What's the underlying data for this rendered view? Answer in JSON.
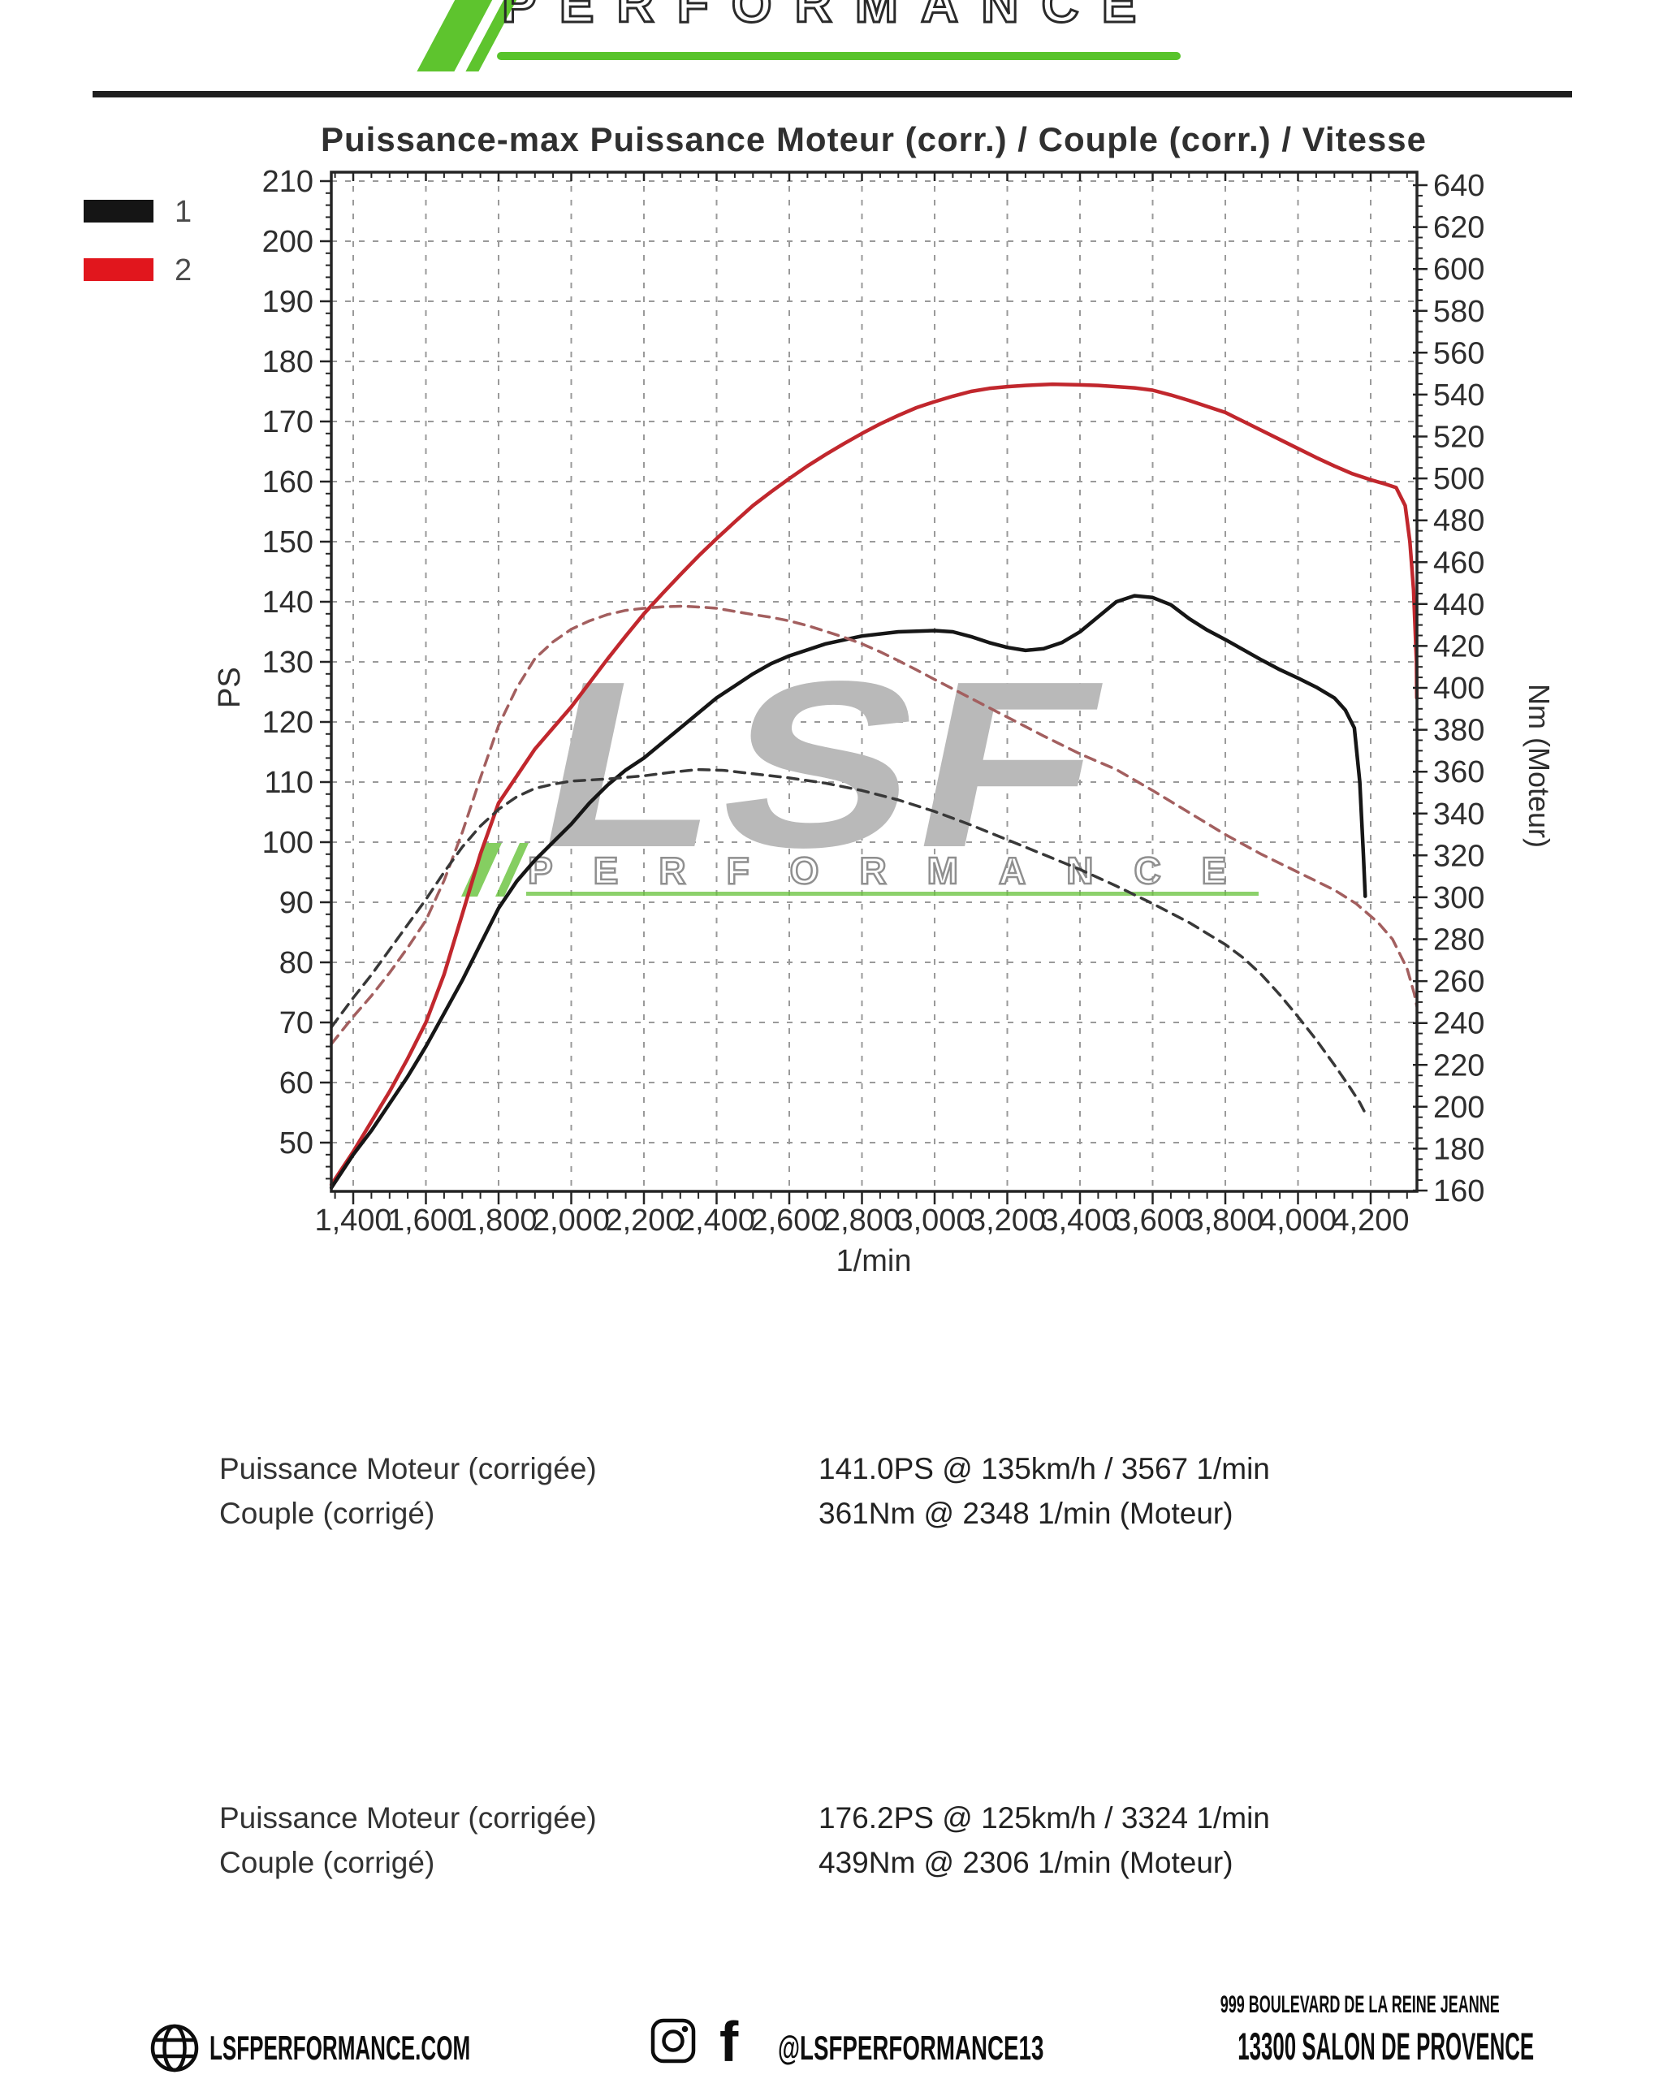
{
  "header": {
    "wordmark": "PERFORMANCE",
    "accent_color": "#5ec42e"
  },
  "legend": [
    {
      "label": "1",
      "color": "#151515"
    },
    {
      "label": "2",
      "color": "#e1161d"
    }
  ],
  "watermark": {
    "text": "LSF",
    "subtext": "PERFORMANCE",
    "color": "#b9b9b9",
    "accent_color": "#66c23a"
  },
  "chart_data": {
    "type": "line",
    "title": "Puissance-max Puissance Moteur (corr.) / Couple (corr.) / Vitesse",
    "xlabel": "1/min",
    "ylabel_left": "PS",
    "ylabel_right": "Nm (Moteur)",
    "x_ticks": [
      1400,
      1600,
      1800,
      2000,
      2200,
      2400,
      2600,
      2800,
      3000,
      3200,
      3400,
      3600,
      3800,
      4000,
      4200
    ],
    "x_range": [
      1340,
      4327
    ],
    "y_left_ticks": [
      50,
      60,
      70,
      80,
      90,
      100,
      110,
      120,
      130,
      140,
      150,
      160,
      170,
      180,
      190,
      200,
      210
    ],
    "y_left_range": [
      41.5,
      211.5
    ],
    "y_right_ticks": [
      160,
      180,
      200,
      220,
      240,
      260,
      280,
      300,
      320,
      340,
      360,
      380,
      400,
      420,
      440,
      460,
      480,
      500,
      520,
      540,
      560,
      580,
      600,
      620,
      640
    ],
    "y_right_range": [
      145,
      655
    ],
    "grid": true,
    "legend_position": "top-left",
    "series": [
      {
        "name": "Run 2 Puissance Moteur (corr.) [PS]",
        "axis": "left",
        "style": "solid",
        "color": "#c1272d",
        "max_label": "176.2PS @ 3324 1/min",
        "points": [
          [
            1340,
            43
          ],
          [
            1400,
            48.5
          ],
          [
            1450,
            53.5
          ],
          [
            1500,
            58.5
          ],
          [
            1550,
            64
          ],
          [
            1600,
            70
          ],
          [
            1650,
            78
          ],
          [
            1700,
            88
          ],
          [
            1750,
            98
          ],
          [
            1800,
            106.5
          ],
          [
            1850,
            111
          ],
          [
            1900,
            115.5
          ],
          [
            1950,
            119
          ],
          [
            2000,
            122.5
          ],
          [
            2050,
            126.5
          ],
          [
            2100,
            130.5
          ],
          [
            2150,
            134.3
          ],
          [
            2200,
            138
          ],
          [
            2250,
            141.3
          ],
          [
            2300,
            144.5
          ],
          [
            2350,
            147.6
          ],
          [
            2400,
            150.5
          ],
          [
            2450,
            153.3
          ],
          [
            2500,
            156
          ],
          [
            2550,
            158.3
          ],
          [
            2600,
            160.5
          ],
          [
            2650,
            162.6
          ],
          [
            2700,
            164.5
          ],
          [
            2750,
            166.3
          ],
          [
            2800,
            168
          ],
          [
            2850,
            169.6
          ],
          [
            2900,
            171
          ],
          [
            2950,
            172.3
          ],
          [
            3000,
            173.3
          ],
          [
            3050,
            174.2
          ],
          [
            3100,
            175
          ],
          [
            3150,
            175.5
          ],
          [
            3200,
            175.8
          ],
          [
            3250,
            176
          ],
          [
            3324,
            176.2
          ],
          [
            3400,
            176.1
          ],
          [
            3450,
            176
          ],
          [
            3500,
            175.8
          ],
          [
            3550,
            175.6
          ],
          [
            3600,
            175.2
          ],
          [
            3650,
            174.4
          ],
          [
            3700,
            173.5
          ],
          [
            3750,
            172.5
          ],
          [
            3800,
            171.5
          ],
          [
            3850,
            170
          ],
          [
            3900,
            168.5
          ],
          [
            3950,
            167
          ],
          [
            4000,
            165.5
          ],
          [
            4050,
            164
          ],
          [
            4100,
            162.6
          ],
          [
            4150,
            161.3
          ],
          [
            4200,
            160.3
          ],
          [
            4240,
            159.6
          ],
          [
            4270,
            159
          ],
          [
            4295,
            156
          ],
          [
            4308,
            150
          ],
          [
            4318,
            142
          ],
          [
            4326,
            130
          ],
          [
            4327,
            124
          ]
        ]
      },
      {
        "name": "Run 1 Puissance Moteur (corr.) [PS]",
        "axis": "left",
        "style": "solid",
        "color": "#161616",
        "max_label": "141.0PS @ 3567 1/min",
        "points": [
          [
            1340,
            42.5
          ],
          [
            1400,
            48
          ],
          [
            1450,
            52
          ],
          [
            1500,
            56.5
          ],
          [
            1550,
            61
          ],
          [
            1600,
            66
          ],
          [
            1650,
            71.5
          ],
          [
            1700,
            77
          ],
          [
            1750,
            83
          ],
          [
            1800,
            89
          ],
          [
            1850,
            93.5
          ],
          [
            1900,
            97
          ],
          [
            1950,
            100
          ],
          [
            2000,
            103
          ],
          [
            2050,
            106.5
          ],
          [
            2100,
            109.5
          ],
          [
            2150,
            112
          ],
          [
            2200,
            114
          ],
          [
            2250,
            116.5
          ],
          [
            2300,
            119
          ],
          [
            2350,
            121.5
          ],
          [
            2400,
            124
          ],
          [
            2450,
            126
          ],
          [
            2500,
            128
          ],
          [
            2550,
            129.7
          ],
          [
            2600,
            131
          ],
          [
            2700,
            133
          ],
          [
            2800,
            134.3
          ],
          [
            2900,
            135
          ],
          [
            3000,
            135.2
          ],
          [
            3050,
            135
          ],
          [
            3100,
            134.2
          ],
          [
            3150,
            133.2
          ],
          [
            3200,
            132.4
          ],
          [
            3250,
            131.9
          ],
          [
            3300,
            132.2
          ],
          [
            3350,
            133.2
          ],
          [
            3400,
            135
          ],
          [
            3450,
            137.5
          ],
          [
            3500,
            140
          ],
          [
            3550,
            141
          ],
          [
            3600,
            140.7
          ],
          [
            3650,
            139.5
          ],
          [
            3700,
            137.2
          ],
          [
            3750,
            135.3
          ],
          [
            3800,
            133.7
          ],
          [
            3850,
            132
          ],
          [
            3900,
            130.3
          ],
          [
            3950,
            128.7
          ],
          [
            4000,
            127.3
          ],
          [
            4050,
            125.8
          ],
          [
            4100,
            124
          ],
          [
            4130,
            122
          ],
          [
            4155,
            119
          ],
          [
            4170,
            110
          ],
          [
            4180,
            98
          ],
          [
            4185,
            91
          ]
        ]
      },
      {
        "name": "Run 2 Couple (corr.) [Nm]",
        "axis": "right",
        "style": "dashed",
        "color": "#a35f5f",
        "max_label": "439Nm @ 2306 1/min",
        "points": [
          [
            1340,
            230
          ],
          [
            1400,
            243
          ],
          [
            1450,
            253
          ],
          [
            1500,
            264
          ],
          [
            1550,
            276
          ],
          [
            1600,
            289
          ],
          [
            1650,
            308
          ],
          [
            1700,
            331
          ],
          [
            1750,
            357
          ],
          [
            1800,
            382
          ],
          [
            1850,
            400
          ],
          [
            1900,
            414
          ],
          [
            1950,
            422
          ],
          [
            2000,
            428
          ],
          [
            2050,
            432
          ],
          [
            2100,
            435
          ],
          [
            2150,
            437
          ],
          [
            2200,
            438
          ],
          [
            2250,
            438.7
          ],
          [
            2306,
            439
          ],
          [
            2360,
            438.5
          ],
          [
            2400,
            438
          ],
          [
            2450,
            436.5
          ],
          [
            2500,
            435
          ],
          [
            2550,
            433.7
          ],
          [
            2600,
            432
          ],
          [
            2650,
            429.7
          ],
          [
            2700,
            427
          ],
          [
            2750,
            424.2
          ],
          [
            2800,
            421
          ],
          [
            2850,
            417.2
          ],
          [
            2900,
            413
          ],
          [
            2950,
            408.6
          ],
          [
            3000,
            404
          ],
          [
            3100,
            395
          ],
          [
            3200,
            386
          ],
          [
            3300,
            377
          ],
          [
            3400,
            368.5
          ],
          [
            3500,
            361
          ],
          [
            3600,
            351
          ],
          [
            3700,
            340.5
          ],
          [
            3800,
            330
          ],
          [
            3900,
            320.5
          ],
          [
            4000,
            312
          ],
          [
            4100,
            303.5
          ],
          [
            4160,
            297
          ],
          [
            4220,
            288
          ],
          [
            4260,
            280
          ],
          [
            4300,
            266
          ],
          [
            4320,
            254
          ],
          [
            4327,
            248
          ]
        ]
      },
      {
        "name": "Run 1 Couple (corr.) [Nm]",
        "axis": "right",
        "style": "dashed",
        "color": "#383838",
        "max_label": "361Nm @ 2348 1/min",
        "points": [
          [
            1340,
            238
          ],
          [
            1400,
            252
          ],
          [
            1450,
            263
          ],
          [
            1500,
            275
          ],
          [
            1550,
            287
          ],
          [
            1600,
            299
          ],
          [
            1650,
            312
          ],
          [
            1700,
            324
          ],
          [
            1750,
            334
          ],
          [
            1800,
            342
          ],
          [
            1850,
            348
          ],
          [
            1900,
            352
          ],
          [
            1950,
            354
          ],
          [
            2000,
            355.5
          ],
          [
            2100,
            356.5
          ],
          [
            2200,
            358
          ],
          [
            2280,
            359.8
          ],
          [
            2348,
            361
          ],
          [
            2420,
            360.6
          ],
          [
            2500,
            359
          ],
          [
            2600,
            357
          ],
          [
            2700,
            354.5
          ],
          [
            2800,
            351
          ],
          [
            2900,
            346.5
          ],
          [
            3000,
            341
          ],
          [
            3100,
            334.5
          ],
          [
            3200,
            327.5
          ],
          [
            3300,
            320.4
          ],
          [
            3400,
            313.3
          ],
          [
            3500,
            305.4
          ],
          [
            3600,
            297
          ],
          [
            3700,
            288
          ],
          [
            3800,
            277.5
          ],
          [
            3850,
            271
          ],
          [
            3900,
            263
          ],
          [
            3950,
            253.5
          ],
          [
            4000,
            243
          ],
          [
            4050,
            232
          ],
          [
            4100,
            220
          ],
          [
            4140,
            210
          ],
          [
            4170,
            202
          ],
          [
            4185,
            197
          ]
        ]
      }
    ]
  },
  "results": [
    {
      "rows": [
        {
          "label": "Puissance Moteur (corrigée)",
          "value": "141.0PS @ 135km/h / 3567 1/min"
        },
        {
          "label": "Couple (corrigé)",
          "value": "361Nm @ 2348 1/min (Moteur)"
        }
      ]
    },
    {
      "rows": [
        {
          "label": "Puissance Moteur (corrigée)",
          "value": "176.2PS @ 125km/h / 3324 1/min"
        },
        {
          "label": "Couple (corrigé)",
          "value": "439Nm @ 2306 1/min (Moteur)"
        }
      ]
    }
  ],
  "footer": {
    "website": "LSFPERFORMANCE.COM",
    "social": "@LSFPERFORMANCE13",
    "address_line1": "999 BOULEVARD DE LA REINE JEANNE",
    "address_line2": "13300 SALON DE PROVENCE"
  }
}
